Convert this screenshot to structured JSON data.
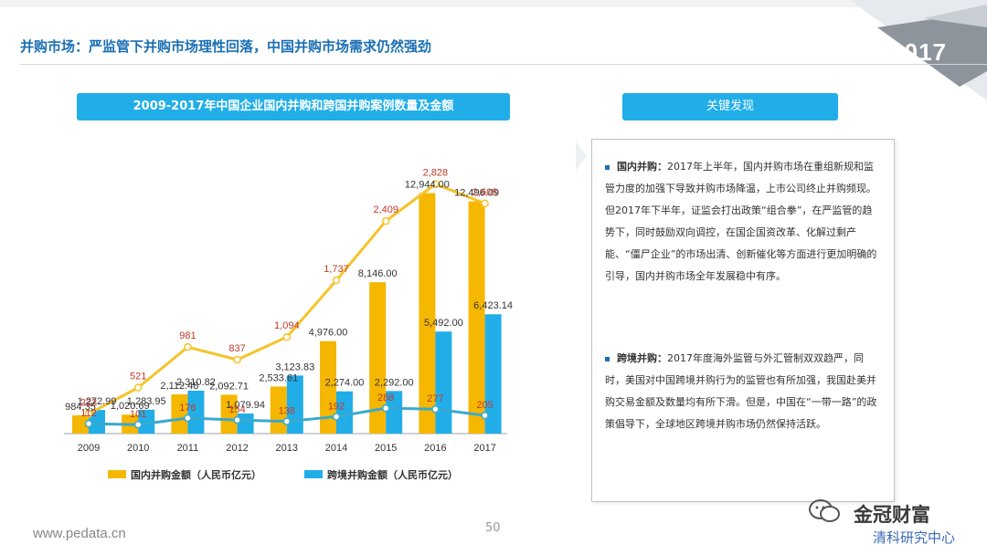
{
  "slide": {
    "title": "并购市场：严监管下并购市场理性回落，中国并购市场需求仍然强劲",
    "year_tag": "2017",
    "website": "www.pedata.cn",
    "page_number": "50"
  },
  "findings": {
    "header": "关键发现",
    "items": [
      {
        "label": "国内并购：",
        "text": "2017年上半年，国内并购市场在重组新规和监管力度的加强下导致并购市场降温，上市公司终止并购频现。但2017年下半年，证监会打出政策“组合拳”，在严监管的趋势下，同时鼓励双向调控，在国企国资改革、化解过剩产能、“僵尸企业”的市场出清、创新催化等方面进行更加明确的引导，国内并购市场全年发展稳中有序。"
      },
      {
        "label": "跨境并购：",
        "text": "2017年度海外监管与外汇管制双双趋严，同时，美国对中国跨境并购行为的监管也有所加强，我国赴美并购交易金额及数量均有所下滑。但是，中国在“一带一路”的政策倡导下，全球地区跨境并购市场仍然保持活跃。"
      }
    ]
  },
  "watermark": {
    "name": "金冠财富",
    "sub": "清科研究中心"
  },
  "chart_data": {
    "type": "bar",
    "title": "2009-2017年中国企业国内并购和跨国并购案例数量及金额",
    "categories": [
      "2009",
      "2010",
      "2011",
      "2012",
      "2013",
      "2014",
      "2015",
      "2016",
      "2017"
    ],
    "series": [
      {
        "name": "国内并购金额（人民币亿元）",
        "type": "bar",
        "color": "#f5b700",
        "values": [
          984.35,
          1020.69,
          2112.48,
          2092.71,
          2533.61,
          4976.0,
          8146.0,
          12944.0,
          12496.09
        ],
        "labels": [
          "984.35",
          "1,020.69",
          "2,112.48",
          "2,092.71",
          "2,533.61",
          "4,976.00",
          "8,146.00",
          "12,944.00",
          "12,496.09"
        ]
      },
      {
        "name": "跨境并购金额（人民币亿元）",
        "type": "bar",
        "color": "#21aee8",
        "values": [
          1272.99,
          1283.95,
          2310.82,
          1079.94,
          3123.83,
          2274.0,
          2292.0,
          5492.0,
          6423.14
        ],
        "labels": [
          "1,272.99",
          "1,283.95",
          "2,310.82",
          "1,079.94",
          "3,123.83",
          "2,274.00",
          "2,292.00",
          "5,492.00",
          "6,423.14"
        ]
      },
      {
        "type": "line",
        "color": "#f5c42c",
        "values": [
          223,
          521,
          981,
          837,
          1094,
          1737,
          2409,
          2828,
          2608
        ],
        "labels": [
          "223",
          "521",
          "981",
          "837",
          "1,094",
          "1,737",
          "2,409",
          "2,828",
          "2,608"
        ]
      },
      {
        "type": "line",
        "color": "#39a9cf",
        "values": [
          112,
          101,
          176,
          154,
          138,
          192,
          288,
          277,
          205
        ],
        "labels": [
          "112",
          "101",
          "176",
          "154",
          "138",
          "192",
          "288",
          "277",
          "205"
        ]
      }
    ],
    "legend_position": "bottom",
    "grid": false,
    "bar_ylim": [
      0,
      14000
    ],
    "line_ylim": [
      0,
      3000
    ],
    "label_colors": {
      "bar": "#333333",
      "line": "#c0392b"
    }
  }
}
